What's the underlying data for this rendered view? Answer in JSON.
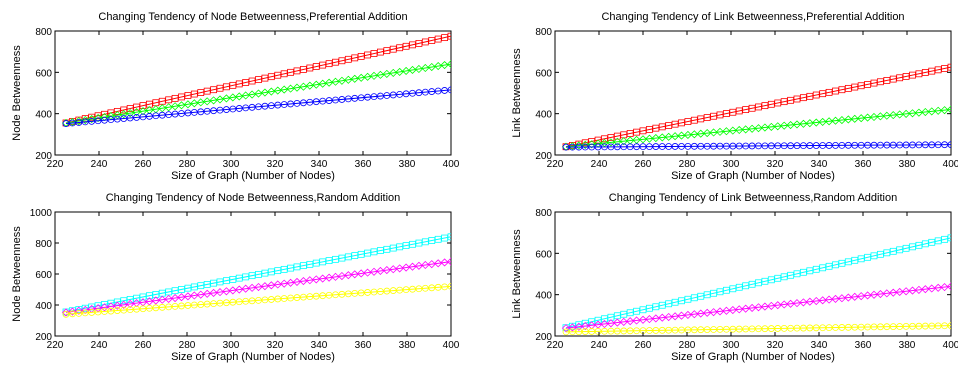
{
  "chart_data": [
    {
      "type": "scatter",
      "title": "Changing Tendency of Node Betweenness,Preferential Addition",
      "xlabel": "Size of Graph (Number of Nodes)",
      "ylabel": "Node Betweenness",
      "xlim": [
        220,
        400
      ],
      "ylim": [
        200,
        800
      ],
      "xticks": [
        220,
        240,
        260,
        280,
        300,
        320,
        340,
        360,
        380,
        400
      ],
      "yticks": [
        200,
        400,
        600,
        800
      ],
      "x_range": [
        225,
        400
      ],
      "series": [
        {
          "color": "#ff0000",
          "marker": "square",
          "values": [
            355,
            775
          ]
        },
        {
          "color": "#00ff00",
          "marker": "diamond",
          "values": [
            355,
            640
          ]
        },
        {
          "color": "#0000ff",
          "marker": "circle",
          "values": [
            352,
            515
          ]
        }
      ]
    },
    {
      "type": "scatter",
      "title": "Changing Tendency of Link Betweenness,Preferential Addition",
      "xlabel": "Size of Graph (Number of Nodes)",
      "ylabel": "Link Betweenness",
      "xlim": [
        220,
        400
      ],
      "ylim": [
        200,
        800
      ],
      "xticks": [
        220,
        240,
        260,
        280,
        300,
        320,
        340,
        360,
        380,
        400
      ],
      "yticks": [
        200,
        400,
        600,
        800
      ],
      "x_range": [
        225,
        400
      ],
      "series": [
        {
          "color": "#ff0000",
          "marker": "square",
          "values": [
            240,
            625
          ]
        },
        {
          "color": "#00ff00",
          "marker": "diamond",
          "values": [
            240,
            420
          ]
        },
        {
          "color": "#0000ff",
          "marker": "circle",
          "values": [
            238,
            250
          ]
        }
      ]
    },
    {
      "type": "scatter",
      "title": "Changing Tendency of Node Betweenness,Random Addition",
      "xlabel": "Size of Graph (Number of Nodes)",
      "ylabel": "Node Betweenness",
      "xlim": [
        220,
        400
      ],
      "ylim": [
        200,
        1000
      ],
      "xticks": [
        220,
        240,
        260,
        280,
        300,
        320,
        340,
        360,
        380,
        400
      ],
      "yticks": [
        200,
        400,
        600,
        800,
        1000
      ],
      "x_range": [
        225,
        400
      ],
      "series": [
        {
          "color": "#00ffff",
          "marker": "square",
          "values": [
            355,
            840
          ]
        },
        {
          "color": "#ff00ff",
          "marker": "diamond",
          "values": [
            352,
            680
          ]
        },
        {
          "color": "#ffff00",
          "marker": "circle",
          "values": [
            340,
            520
          ]
        }
      ]
    },
    {
      "type": "scatter",
      "title": "Changing Tendency of Link Betweenness,Random Addition",
      "xlabel": "Size of Graph (Number of Nodes)",
      "ylabel": "Link Betweenness",
      "xlim": [
        220,
        400
      ],
      "ylim": [
        200,
        800
      ],
      "xticks": [
        220,
        240,
        260,
        280,
        300,
        320,
        340,
        360,
        380,
        400
      ],
      "yticks": [
        200,
        400,
        600,
        800
      ],
      "x_range": [
        225,
        400
      ],
      "series": [
        {
          "color": "#00ffff",
          "marker": "square",
          "values": [
            240,
            675
          ]
        },
        {
          "color": "#ff00ff",
          "marker": "diamond",
          "values": [
            238,
            440
          ]
        },
        {
          "color": "#ffff00",
          "marker": "circle",
          "values": [
            220,
            250
          ]
        }
      ]
    }
  ]
}
